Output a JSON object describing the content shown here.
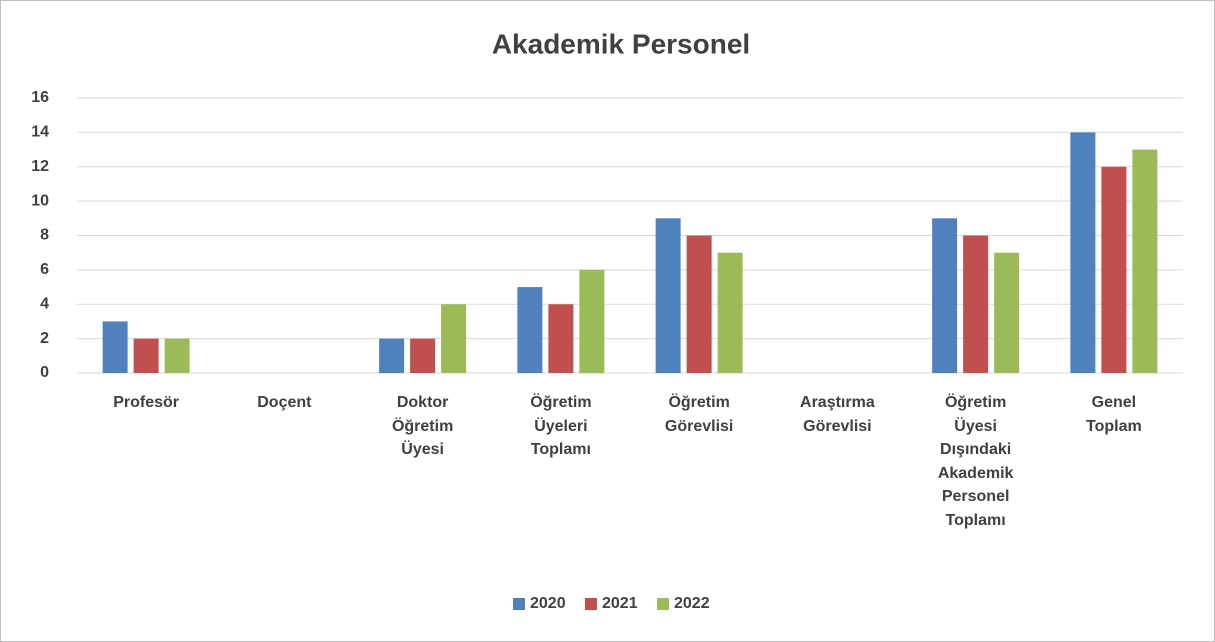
{
  "chart_data": {
    "type": "bar",
    "title": "Akademik Personel",
    "categories": [
      "Profesör",
      "Doçent",
      "Doktor Öğretim Üyesi",
      "Öğretim Üyeleri Toplamı",
      "Öğretim Görevlisi",
      "Araştırma Görevlisi",
      "Öğretim Üyesi Dışındaki Akademik Personel Toplamı",
      "Genel Toplam"
    ],
    "series": [
      {
        "name": "2020",
        "color": "#4f81bd",
        "values": [
          3,
          0,
          2,
          5,
          9,
          0,
          9,
          14
        ]
      },
      {
        "name": "2021",
        "color": "#c0504d",
        "values": [
          2,
          0,
          2,
          4,
          8,
          0,
          8,
          12
        ]
      },
      {
        "name": "2022",
        "color": "#9bbb59",
        "values": [
          2,
          0,
          4,
          6,
          7,
          0,
          7,
          13
        ]
      }
    ],
    "ylim": [
      0,
      16
    ],
    "yticks": [
      0,
      2,
      4,
      6,
      8,
      10,
      12,
      14,
      16
    ],
    "grid": true,
    "legend": "bottom"
  }
}
